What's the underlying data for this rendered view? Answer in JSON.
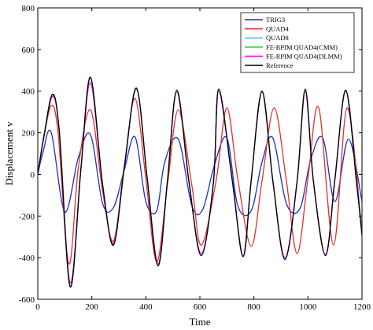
{
  "chart_data": {
    "type": "line",
    "xlabel": "Time",
    "ylabel": "Displacement v",
    "xlim": [
      0,
      1200
    ],
    "ylim": [
      -600,
      800
    ],
    "xticks": [
      0,
      200,
      400,
      600,
      800,
      1000,
      1200
    ],
    "yticks": [
      -600,
      -400,
      -200,
      0,
      200,
      400,
      600,
      800
    ],
    "grid": false,
    "legend_position": "top-right",
    "series": [
      {
        "name": "TRIG3",
        "color": "#1a2fc9",
        "x": [
          0,
          20,
          50,
          100,
          150,
          195,
          240,
          280,
          320,
          360,
          400,
          440,
          470,
          520,
          570,
          610,
          655,
          700,
          740,
          790,
          830,
          870,
          920,
          970,
          1010,
          1055,
          1100,
          1150,
          1200
        ],
        "y": [
          0,
          110,
          200,
          -180,
          80,
          190,
          -140,
          -160,
          20,
          180,
          -130,
          -175,
          60,
          170,
          -150,
          -170,
          50,
          175,
          -150,
          -175,
          60,
          175,
          -140,
          -165,
          70,
          175,
          -130,
          170,
          -130
        ]
      },
      {
        "name": "QUAD4",
        "color": "#e0312e",
        "x": [
          0,
          20,
          50,
          75,
          115,
          150,
          195,
          240,
          280,
          320,
          360,
          400,
          440,
          480,
          520,
          570,
          605,
          660,
          700,
          740,
          790,
          830,
          875,
          920,
          960,
          1000,
          1040,
          1095,
          1145,
          1200
        ],
        "y": [
          0,
          160,
          330,
          200,
          -430,
          30,
          310,
          -80,
          -320,
          40,
          365,
          -20,
          -420,
          -50,
          310,
          -50,
          -340,
          -30,
          320,
          -20,
          -345,
          -30,
          320,
          -30,
          -380,
          -20,
          320,
          -340,
          320,
          -280
        ]
      },
      {
        "name": "QUAD8",
        "color": "#4ad8e6",
        "x": [
          0,
          25,
          55,
          80,
          120,
          160,
          195,
          240,
          280,
          320,
          365,
          405,
          445,
          480,
          515,
          560,
          605,
          650,
          670,
          720,
          760,
          790,
          830,
          870,
          915,
          960,
          990,
          1020,
          1065,
          1100,
          1140,
          1180,
          1200
        ],
        "y": [
          0,
          200,
          380,
          200,
          -540,
          30,
          465,
          -50,
          -335,
          30,
          415,
          -20,
          -440,
          -30,
          400,
          -40,
          -390,
          -40,
          410,
          -30,
          -395,
          -30,
          400,
          -30,
          -410,
          -30,
          410,
          -30,
          -390,
          -20,
          405,
          -40,
          -290
        ]
      },
      {
        "name": "FE-RPIM QUAD4(CMM)",
        "color": "#24d424",
        "x": [
          0,
          25,
          55,
          80,
          120,
          160,
          195,
          240,
          280,
          320,
          365,
          405,
          445,
          480,
          515,
          560,
          605,
          650,
          670,
          720,
          760,
          790,
          830,
          870,
          915,
          960,
          990,
          1020,
          1065,
          1100,
          1140,
          1180,
          1200
        ],
        "y": [
          0,
          205,
          385,
          200,
          -540,
          30,
          468,
          -50,
          -335,
          30,
          415,
          -20,
          -440,
          -30,
          405,
          -40,
          -390,
          -40,
          410,
          -30,
          -395,
          -30,
          400,
          -30,
          -408,
          -30,
          410,
          -30,
          -390,
          -20,
          405,
          -40,
          -290
        ]
      },
      {
        "name": "FE-RPIM QUAD4(DLMM)",
        "color": "#e01ee0",
        "x": [
          0,
          25,
          55,
          80,
          120,
          160,
          195,
          240,
          280,
          320,
          365,
          405,
          445,
          480,
          515,
          560,
          605,
          650,
          670,
          720,
          760,
          790,
          830,
          870,
          915,
          960,
          990,
          1020,
          1065,
          1100,
          1140,
          1180,
          1200
        ],
        "y": [
          0,
          200,
          375,
          200,
          -520,
          30,
          440,
          -50,
          -330,
          30,
          410,
          -20,
          -430,
          -30,
          395,
          -40,
          -380,
          -40,
          400,
          -30,
          -390,
          -30,
          395,
          -30,
          -400,
          -30,
          400,
          -30,
          -385,
          -20,
          400,
          -40,
          -285
        ]
      },
      {
        "name": "Reference",
        "color": "#000000",
        "x": [
          0,
          25,
          55,
          80,
          120,
          160,
          195,
          240,
          280,
          320,
          365,
          405,
          445,
          480,
          515,
          560,
          605,
          650,
          670,
          720,
          760,
          790,
          830,
          870,
          915,
          960,
          990,
          1020,
          1065,
          1100,
          1140,
          1180,
          1200
        ],
        "y": [
          0,
          200,
          385,
          200,
          -540,
          30,
          465,
          -50,
          -340,
          30,
          415,
          -20,
          -440,
          -30,
          405,
          -40,
          -390,
          -40,
          410,
          -30,
          -395,
          -30,
          400,
          -30,
          -408,
          -30,
          410,
          -30,
          -390,
          -20,
          405,
          -40,
          -290
        ]
      }
    ]
  }
}
